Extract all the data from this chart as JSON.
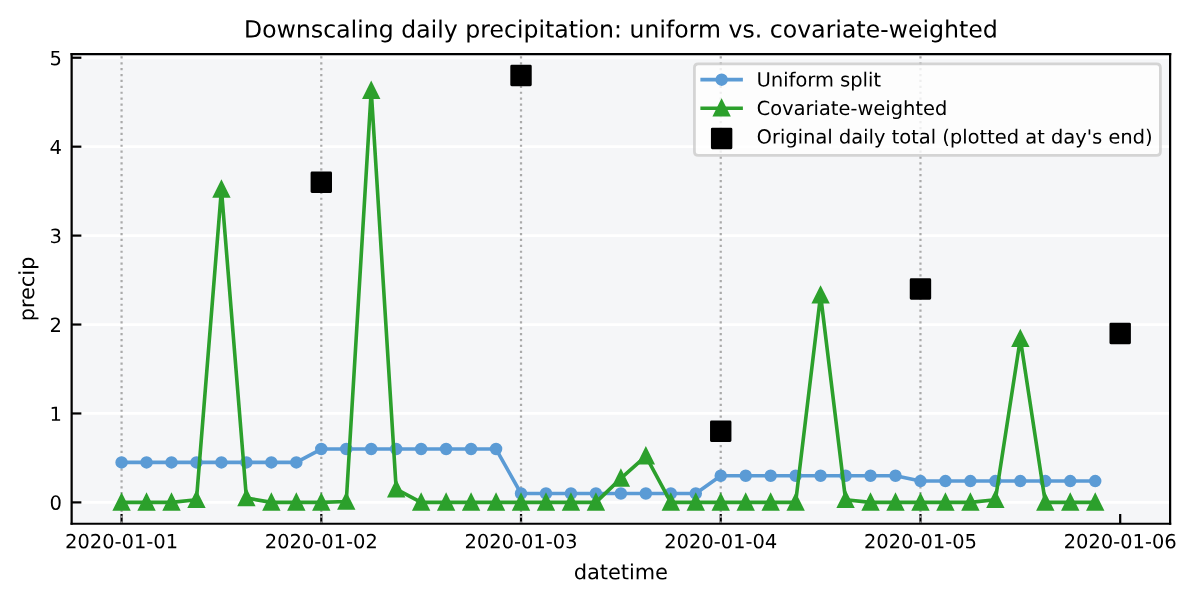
{
  "chart_data": {
    "type": "line",
    "title": "Downscaling daily precipitation: uniform vs. covariate-weighted",
    "xlabel": "datetime",
    "ylabel": "precip",
    "xlim": [
      "2019-12-31T18:00",
      "2020-01-06T06:00"
    ],
    "ylim": [
      -0.24,
      5.04
    ],
    "xticks": [
      {
        "value": "2020-01-01",
        "label": "2020-01-01"
      },
      {
        "value": "2020-01-02",
        "label": "2020-01-02"
      },
      {
        "value": "2020-01-03",
        "label": "2020-01-03"
      },
      {
        "value": "2020-01-04",
        "label": "2020-01-04"
      },
      {
        "value": "2020-01-05",
        "label": "2020-01-05"
      },
      {
        "value": "2020-01-06",
        "label": "2020-01-06"
      }
    ],
    "yticks": [
      0,
      1,
      2,
      3,
      4,
      5
    ],
    "grid": "y",
    "legend": "top right",
    "ref_lines": [
      {
        "axis": "x",
        "value": "2020-01-01",
        "color": "#aaaaaa",
        "line_style": "dotted"
      },
      {
        "axis": "x",
        "value": "2020-01-02",
        "color": "#aaaaaa",
        "line_style": "dotted"
      },
      {
        "axis": "x",
        "value": "2020-01-03",
        "color": "#aaaaaa",
        "line_style": "dotted"
      },
      {
        "axis": "x",
        "value": "2020-01-04",
        "color": "#aaaaaa",
        "line_style": "dotted"
      },
      {
        "axis": "x",
        "value": "2020-01-05",
        "color": "#aaaaaa",
        "line_style": "dotted"
      }
    ],
    "series": [
      {
        "name": "Uniform split",
        "color": "#5b9bd5",
        "marker": "circle",
        "values": [
          0.45,
          0.45,
          0.45,
          0.45,
          0.45,
          0.45,
          0.45,
          0.45,
          0.6,
          0.6,
          0.6,
          0.6,
          0.6,
          0.6,
          0.6,
          0.6,
          0.1,
          0.1,
          0.1,
          0.1,
          0.1,
          0.1,
          0.1,
          0.1,
          0.3,
          0.3,
          0.3,
          0.3,
          0.3,
          0.3,
          0.3,
          0.3,
          0.24,
          0.24,
          0.24,
          0.24,
          0.24,
          0.24,
          0.24,
          0.24
        ]
      },
      {
        "name": "Covariate-weighted",
        "color": "#2ca02c",
        "marker": "triangle",
        "values": [
          0,
          0,
          0,
          0.03,
          3.52,
          0.05,
          0,
          0,
          0,
          0.01,
          4.63,
          0.15,
          0,
          0,
          0,
          0,
          0,
          0,
          0,
          0,
          0.27,
          0.52,
          0,
          0,
          0,
          0,
          0,
          0,
          2.33,
          0.03,
          0,
          0,
          0,
          0,
          0,
          0.03,
          1.84,
          0,
          0,
          0
        ]
      },
      {
        "name": "Original daily total (plotted at day's end)",
        "type": "scatter",
        "color": "#000000",
        "marker": "square",
        "x": [
          "2020-01-02",
          "2020-01-03",
          "2020-01-04",
          "2020-01-05",
          "2020-01-06"
        ],
        "values": [
          3.6,
          4.8,
          0.8,
          2.4,
          1.9
        ]
      }
    ],
    "x": [
      "2020-01-01T00:00",
      "2020-01-01T03:00",
      "2020-01-01T06:00",
      "2020-01-01T09:00",
      "2020-01-01T12:00",
      "2020-01-01T15:00",
      "2020-01-01T18:00",
      "2020-01-01T21:00",
      "2020-01-02T00:00",
      "2020-01-02T03:00",
      "2020-01-02T06:00",
      "2020-01-02T09:00",
      "2020-01-02T12:00",
      "2020-01-02T15:00",
      "2020-01-02T18:00",
      "2020-01-02T21:00",
      "2020-01-03T00:00",
      "2020-01-03T03:00",
      "2020-01-03T06:00",
      "2020-01-03T09:00",
      "2020-01-03T12:00",
      "2020-01-03T15:00",
      "2020-01-03T18:00",
      "2020-01-03T21:00",
      "2020-01-04T00:00",
      "2020-01-04T03:00",
      "2020-01-04T06:00",
      "2020-01-04T09:00",
      "2020-01-04T12:00",
      "2020-01-04T15:00",
      "2020-01-04T18:00",
      "2020-01-04T21:00",
      "2020-01-05T00:00",
      "2020-01-05T03:00",
      "2020-01-05T06:00",
      "2020-01-05T09:00",
      "2020-01-05T12:00",
      "2020-01-05T15:00",
      "2020-01-05T18:00",
      "2020-01-05T21:00"
    ]
  }
}
